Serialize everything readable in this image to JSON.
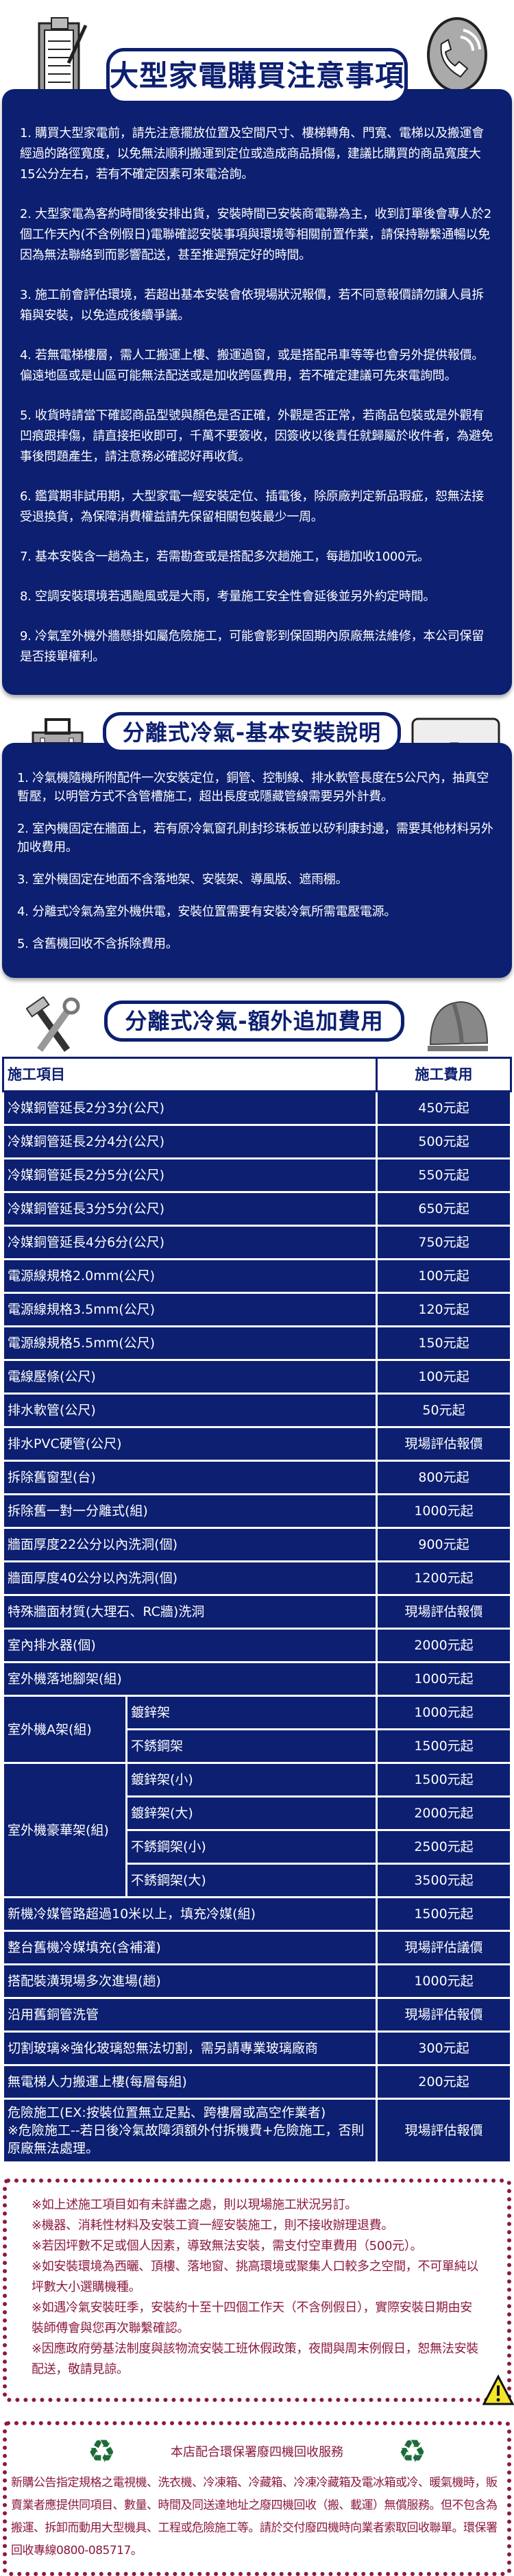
{
  "section1": {
    "title": "大型家電購買注意事項",
    "items": [
      "1. 購買大型家電前，請先注意擺放位置及空間尺寸、樓梯轉角、門寬、電梯以及搬運會經過的路徑寬度，以免無法順利搬運到定位或造成商品損傷，建議比購買的商品寬度大15公分左右，若有不確定因素可來電洽詢。",
      "2. 大型家電為客約時間後安排出貨，安裝時間已安裝商電聯為主，收到訂單後會專人於2個工作天內(不含例假日)電聯確認安裝事項與環境等相關前置作業，請保持聯繫通暢以免因為無法聯絡到而影響配送，甚至推遲預定好的時間。",
      "3. 施工前會評估環境，若超出基本安裝會依現場狀況報價，若不同意報價請勿讓人員拆箱與安裝，以免造成後續爭議。",
      "4. 若無電梯樓層，需人工搬運上樓、搬運過窗，或是搭配吊車等等也會另外提供報價。偏遠地區或是山區可能無法配送或是加收跨區費用，若不確定建議可先來電詢問。",
      "5. 收貨時請當下確認商品型號與顏色是否正確，外觀是否正常，若商品包裝或是外觀有凹痕跟摔傷，請直接拒收即可，千萬不要簽收，因簽收以後責任就歸屬於收件者，為避免事後問題產生，請注意務必確認好再收貨。",
      "6. 鑑賞期非試用期，大型家電一經安裝定位、插電後，除原廠判定新品瑕疵，恕無法接受退換貨，為保障消費權益請先保留相關包裝最少一周。",
      "7. 基本安裝含一趟為主，若需勘查或是搭配多次趟施工，每趟加收1000元。",
      "8. 空調安裝環境若遇颱風或是大雨，考量施工安全性會延後並另外約定時間。",
      "9. 冷氣室外機外牆懸掛如屬危險施工，可能會影到保固期內原廠無法維修，本公司保留是否接單權利。"
    ]
  },
  "section2": {
    "title": "分離式冷氣-基本安裝說明",
    "items": [
      "1. 冷氣機隨機所附配件一次安裝定位，銅管、控制線、排水軟管長度在5公尺內，抽真空暫壓，以明管方式不含管槽施工，超出長度或隱藏管線需要另外計費。",
      "2. 室內機固定在牆面上，若有原冷氣窗孔則封珍珠板並以矽利康封邊，需要其他材料另外加收費用。",
      "3. 室外機固定在地面不含落地架、安裝架、導風版、遮雨棚。",
      "4. 分離式冷氣為室外機供電，安裝位置需要有安裝冷氣所需電壓電源。",
      "5. 含舊機回收不含拆除費用。"
    ]
  },
  "section3": {
    "title": "分離式冷氣-額外追加費用",
    "header": {
      "item": "施工項目",
      "price": "施工費用"
    },
    "rows_before": [
      [
        "冷媒銅管延長2分3分(公尺)",
        "450元起"
      ],
      [
        "冷媒銅管延長2分4分(公尺)",
        "500元起"
      ],
      [
        "冷媒銅管延長2分5分(公尺)",
        "550元起"
      ],
      [
        "冷媒銅管延長3分5分(公尺)",
        "650元起"
      ],
      [
        "冷媒銅管延長4分6分(公尺)",
        "750元起"
      ],
      [
        "電源線規格2.0mm(公尺)",
        "100元起"
      ],
      [
        "電源線規格3.5mm(公尺)",
        "120元起"
      ],
      [
        "電源線規格5.5mm(公尺)",
        "150元起"
      ],
      [
        "電線壓條(公尺)",
        "100元起"
      ],
      [
        "排水軟管(公尺)",
        "50元起"
      ],
      [
        "排水PVC硬管(公尺)",
        "現場評估報價"
      ],
      [
        "拆除舊窗型(台)",
        "800元起"
      ],
      [
        "拆除舊一對一分離式(組)",
        "1000元起"
      ],
      [
        "牆面厚度22公分以內洗洞(個)",
        "900元起"
      ],
      [
        "牆面厚度40公分以內洗洞(個)",
        "1200元起"
      ],
      [
        "特殊牆面材質(大理石、RC牆)洗洞",
        "現場評估報價"
      ],
      [
        "室內排水器(個)",
        "2000元起"
      ],
      [
        "室外機落地腳架(組)",
        "1000元起"
      ]
    ],
    "groups": [
      {
        "label": "室外機A架(組)",
        "rows": [
          [
            "鍍鋅架",
            "1000元起"
          ],
          [
            "不銹鋼架",
            "1500元起"
          ]
        ]
      },
      {
        "label": "室外機豪華架(組)",
        "rows": [
          [
            "鍍鋅架(小)",
            "1500元起"
          ],
          [
            "鍍鋅架(大)",
            "2000元起"
          ],
          [
            "不銹鋼架(小)",
            "2500元起"
          ],
          [
            "不銹鋼架(大)",
            "3500元起"
          ]
        ]
      }
    ],
    "rows_after": [
      [
        "新機冷媒管路超過10米以上，填充冷媒(組)",
        "1500元起"
      ],
      [
        "整台舊機冷媒填充(含補灌)",
        "現場評估議價"
      ],
      [
        "搭配裝潢現場多次進場(趟)",
        "1000元起"
      ],
      [
        "沿用舊銅管洗管",
        "現場評估報價"
      ],
      [
        "切割玻璃※強化玻璃恕無法切割，需另請專業玻璃廠商",
        "300元起"
      ],
      [
        "無電梯人力搬運上樓(每層每組)",
        "200元起"
      ],
      [
        "危險施工(EX:按裝位置無立足點、跨樓層或高空作業者)\n※危險施工--若日後冷氣故障須額外付拆機費+危險施工，否則原廠無法處理。",
        "現場評估報價"
      ]
    ]
  },
  "notes": [
    "※如上述施工項目如有未詳盡之處，則以現場施工狀況另訂。",
    "※機器、消耗性材料及安裝工資一經安裝施工，則不接收辦理退費。",
    "※若因坪數不足或個人因素，導致無法安裝，需支付空車費用（500元）。",
    "※如安裝環境為西曬、頂樓、落地窗、挑高環境或聚集人口較多之空間，不可單純以坪數大小選購機種。",
    "※如遇冷氣安裝旺季，安裝約十至十四個工作天（不含例假日），實際安裝日期由安裝師傅會與您再次聯繫確認。",
    "※因應政府勞基法制度與該物流安裝工班休假政策，夜間與周末例假日，恕無法安裝配送，敬請見諒。"
  ],
  "recycle": {
    "title": "本店配合環保署廢四機回收服務",
    "body": "新購公告指定規格之電視機、洗衣機、冷凍箱、冷藏箱、冷凍冷藏箱及電冰箱或冷、暖氣機時，販賣業者應提供同項目、數量、時間及同送達地址之廢四機回收（搬、載運）無償服務。但不包含為搬運、拆卸而動用大型機具、工程或危險施工等。請於交付廢四機時向業者索取回收聯單。環保署回收專線0800-085717。"
  },
  "colors": {
    "navy": "#0c1f70",
    "maroon": "#8b1a3e",
    "recycle_green": "#1e6b3a"
  }
}
